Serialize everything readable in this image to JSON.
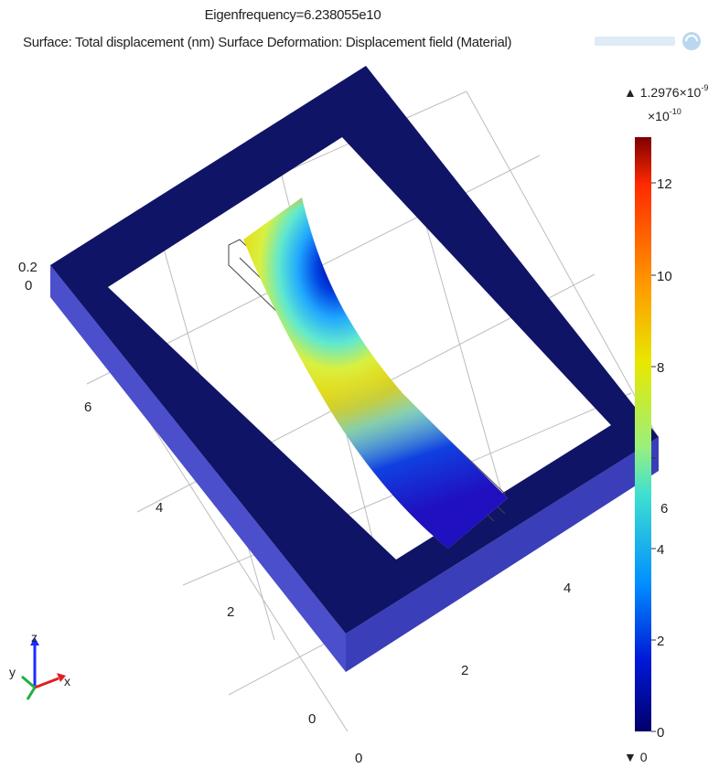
{
  "title": {
    "line1": "Eigenfrequency=6.238055e10",
    "line2": "Surface: Total displacement (nm)   Surface Deformation: Displacement field (Material)"
  },
  "colorbar": {
    "max_label": "▲ 1.2976×10",
    "max_exp": "-9",
    "scale_label": "×10",
    "scale_exp": "-10",
    "min_label": "▼ 0",
    "ticks": [
      "12",
      "10",
      "8",
      "6",
      "4",
      "2",
      "0"
    ],
    "tick_values": [
      12,
      10,
      8,
      6,
      4,
      2,
      0
    ],
    "range": [
      0,
      12.976
    ],
    "colormap": [
      "#7f0000",
      "#ff3a00",
      "#ffb000",
      "#e6e600",
      "#40e0d0",
      "#0070ff",
      "#0000b0",
      "#00006a"
    ]
  },
  "axes": {
    "z_ticks": [
      "0.2",
      "0"
    ],
    "y_ticks": [
      "6",
      "4",
      "2",
      "0"
    ],
    "x_ticks": [
      "0",
      "2",
      "4"
    ]
  },
  "triad": {
    "x": "x",
    "y": "y",
    "z": "z"
  },
  "colors": {
    "frame_top": "#101466",
    "frame_side": "#4b4fcc",
    "grid": "#b8b8b8"
  }
}
